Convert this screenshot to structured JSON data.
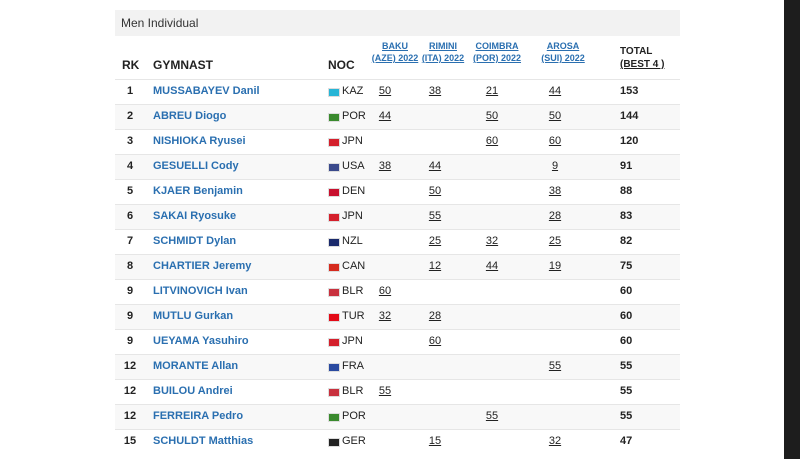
{
  "section_title": "Men Individual",
  "header": {
    "rank": "RK",
    "gymnast": "GYMNAST",
    "noc": "NOC",
    "events": [
      {
        "name": "BAKU",
        "sub": "(AZE) 2022"
      },
      {
        "name": "RIMINI",
        "sub": "(ITA) 2022"
      },
      {
        "name": "COIMBRA",
        "sub": "(POR) 2022"
      },
      {
        "name": "AROSA",
        "sub": "(SUI) 2022"
      }
    ],
    "total": "TOTAL",
    "total_sub": "(BEST 4 )"
  },
  "rows": [
    {
      "rank": 1,
      "name": "MUSSABAYEV Danil",
      "noc": "KAZ",
      "flag": "#27b5d6",
      "scores": [
        50,
        38,
        21,
        44
      ],
      "total": 153
    },
    {
      "rank": 2,
      "name": "ABREU Diogo",
      "noc": "POR",
      "flag": "#3a8a2e",
      "scores": [
        44,
        null,
        50,
        50
      ],
      "total": 144
    },
    {
      "rank": 3,
      "name": "NISHIOKA Ryusei",
      "noc": "JPN",
      "flag": "#d4202c",
      "scores": [
        null,
        null,
        60,
        60
      ],
      "total": 120
    },
    {
      "rank": 4,
      "name": "GESUELLI Cody",
      "noc": "USA",
      "flag": "#3b4a8c",
      "scores": [
        38,
        44,
        null,
        9
      ],
      "total": 91
    },
    {
      "rank": 5,
      "name": "KJAER Benjamin",
      "noc": "DEN",
      "flag": "#c8102e",
      "scores": [
        null,
        50,
        null,
        38
      ],
      "total": 88
    },
    {
      "rank": 6,
      "name": "SAKAI Ryosuke",
      "noc": "JPN",
      "flag": "#d4202c",
      "scores": [
        null,
        55,
        null,
        28
      ],
      "total": 83
    },
    {
      "rank": 7,
      "name": "SCHMIDT Dylan",
      "noc": "NZL",
      "flag": "#1a2a6c",
      "scores": [
        null,
        25,
        32,
        25
      ],
      "total": 82
    },
    {
      "rank": 8,
      "name": "CHARTIER Jeremy",
      "noc": "CAN",
      "flag": "#d52b1e",
      "scores": [
        null,
        12,
        44,
        19
      ],
      "total": 75
    },
    {
      "rank": 9,
      "name": "LITVINOVICH Ivan",
      "noc": "BLR",
      "flag": "#c8313e",
      "scores": [
        60,
        null,
        null,
        null
      ],
      "total": 60
    },
    {
      "rank": 9,
      "name": "MUTLU Gurkan",
      "noc": "TUR",
      "flag": "#e30a17",
      "scores": [
        32,
        28,
        null,
        null
      ],
      "total": 60
    },
    {
      "rank": 9,
      "name": "UEYAMA Yasuhiro",
      "noc": "JPN",
      "flag": "#d4202c",
      "scores": [
        null,
        60,
        null,
        null
      ],
      "total": 60
    },
    {
      "rank": 12,
      "name": "MORANTE Allan",
      "noc": "FRA",
      "flag": "#2a4aa0",
      "scores": [
        null,
        null,
        null,
        55
      ],
      "total": 55
    },
    {
      "rank": 12,
      "name": "BUILOU Andrei",
      "noc": "BLR",
      "flag": "#c8313e",
      "scores": [
        55,
        null,
        null,
        null
      ],
      "total": 55
    },
    {
      "rank": 12,
      "name": "FERREIRA Pedro",
      "noc": "POR",
      "flag": "#3a8a2e",
      "scores": [
        null,
        null,
        55,
        null
      ],
      "total": 55
    },
    {
      "rank": 15,
      "name": "SCHULDT Matthias",
      "noc": "GER",
      "flag": "#222222",
      "scores": [
        null,
        15,
        null,
        32
      ],
      "total": 47
    }
  ]
}
